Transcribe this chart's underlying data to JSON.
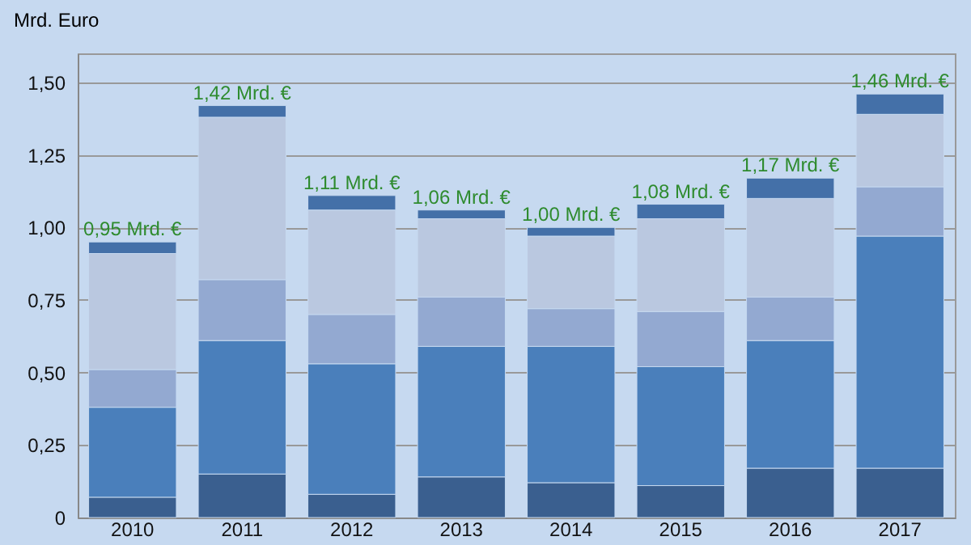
{
  "chart_data": {
    "type": "bar",
    "stacked": true,
    "ylabel": "Mrd. Euro",
    "categories": [
      "2010",
      "2011",
      "2012",
      "2013",
      "2014",
      "2015",
      "2016",
      "2017"
    ],
    "series": [
      {
        "color": "#3a5f8f",
        "values": [
          0.07,
          0.15,
          0.08,
          0.14,
          0.12,
          0.11,
          0.17,
          0.17
        ]
      },
      {
        "color": "#4a7fbb",
        "values": [
          0.31,
          0.46,
          0.45,
          0.45,
          0.47,
          0.41,
          0.44,
          0.8
        ]
      },
      {
        "color": "#93a9d1",
        "values": [
          0.13,
          0.21,
          0.17,
          0.17,
          0.13,
          0.19,
          0.15,
          0.17
        ]
      },
      {
        "color": "#bac8e0",
        "values": [
          0.4,
          0.56,
          0.36,
          0.27,
          0.25,
          0.32,
          0.34,
          0.25
        ]
      },
      {
        "color": "#4470a8",
        "values": [
          0.04,
          0.04,
          0.05,
          0.03,
          0.03,
          0.05,
          0.07,
          0.07
        ]
      }
    ],
    "totals": [
      "0,95 Mrd. €",
      "1,42 Mrd. €",
      "1,11 Mrd. €",
      "1,06 Mrd. €",
      "1,00 Mrd. €",
      "1,08 Mrd. €",
      "1,17 Mrd. €",
      "1,46 Mrd. €"
    ],
    "ylim": [
      0,
      1.6
    ],
    "yticks": [
      0,
      {
        "value": 0.25,
        "label": "0,25"
      },
      {
        "value": 0.5,
        "label": "0,50"
      },
      {
        "value": 0.75,
        "label": "0,75"
      },
      {
        "value": 1,
        "label": "1,00"
      },
      {
        "value": 1.25,
        "label": "1,25"
      },
      {
        "value": 1.5,
        "label": "1,50"
      }
    ],
    "grid": "y"
  }
}
